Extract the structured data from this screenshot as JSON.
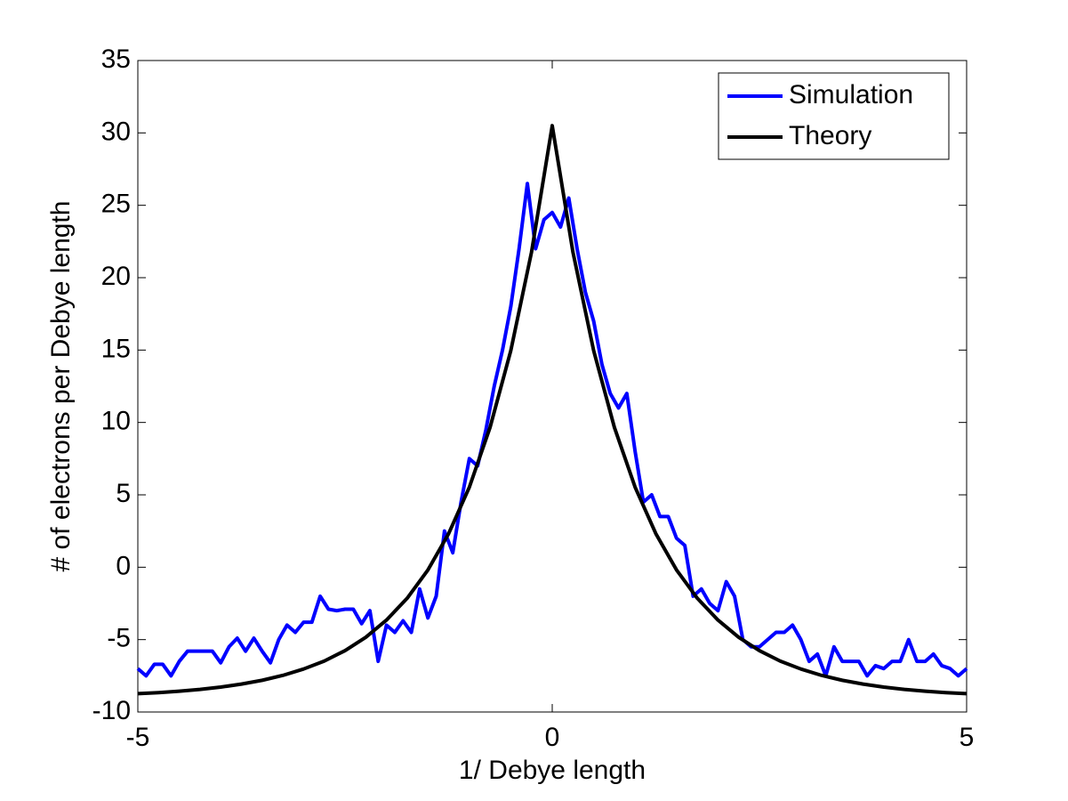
{
  "chart_data": {
    "type": "line",
    "xlabel": "1/ Debye length",
    "ylabel": "# of electrons per Debye length",
    "xlim": [
      -5,
      5
    ],
    "ylim": [
      -10,
      35
    ],
    "xticks": [
      -5,
      0,
      5
    ],
    "yticks": [
      -10,
      -5,
      0,
      5,
      10,
      15,
      20,
      25,
      30,
      35
    ],
    "legend": "upper-right",
    "series": [
      {
        "name": "Simulation",
        "color": "#0000ff",
        "x": [
          -5.0,
          -4.9,
          -4.8,
          -4.7,
          -4.6,
          -4.5,
          -4.4,
          -4.3,
          -4.2,
          -4.1,
          -4.0,
          -3.9,
          -3.8,
          -3.7,
          -3.6,
          -3.5,
          -3.4,
          -3.3,
          -3.2,
          -3.1,
          -3.0,
          -2.9,
          -2.8,
          -2.7,
          -2.6,
          -2.5,
          -2.4,
          -2.3,
          -2.2,
          -2.1,
          -2.0,
          -1.9,
          -1.8,
          -1.7,
          -1.6,
          -1.5,
          -1.4,
          -1.3,
          -1.2,
          -1.1,
          -1.0,
          -0.9,
          -0.8,
          -0.7,
          -0.6,
          -0.5,
          -0.4,
          -0.3,
          -0.2,
          -0.1,
          0,
          0.1,
          0.2,
          0.3,
          0.4,
          0.5,
          0.6,
          0.7,
          0.8,
          0.9,
          1.0,
          1.1,
          1.2,
          1.3,
          1.4,
          1.5,
          1.6,
          1.7,
          1.8,
          1.9,
          2.0,
          2.1,
          2.2,
          2.3,
          2.4,
          2.5,
          2.6,
          2.7,
          2.8,
          2.9,
          3.0,
          3.1,
          3.2,
          3.3,
          3.4,
          3.5,
          3.6,
          3.7,
          3.8,
          3.9,
          4.0,
          4.1,
          4.2,
          4.3,
          4.4,
          4.5,
          4.6,
          4.7,
          4.8,
          4.9,
          5.0
        ],
        "values": [
          -7,
          -7.5,
          -6.7,
          -6.7,
          -7.5,
          -6.5,
          -5.8,
          -5.8,
          -5.8,
          -5.8,
          -6.6,
          -5.5,
          -4.9,
          -5.8,
          -4.9,
          -5.8,
          -6.6,
          -5.0,
          -4.0,
          -4.5,
          -3.8,
          -3.8,
          -2.0,
          -2.9,
          -3.0,
          -2.9,
          -2.9,
          -3.9,
          -3.0,
          -6.5,
          -4.0,
          -4.5,
          -3.7,
          -4.5,
          -1.5,
          -3.5,
          -2.0,
          2.5,
          1.0,
          4.5,
          7.5,
          7.0,
          9.5,
          12.5,
          15.0,
          18.0,
          22.0,
          26.5,
          22.0,
          24.0,
          24.5,
          23.5,
          25.5,
          22.0,
          19.0,
          17.0,
          14.0,
          12.0,
          11.0,
          12.0,
          8.0,
          4.5,
          5.0,
          3.5,
          3.5,
          2.0,
          1.5,
          -2.0,
          -1.5,
          -2.5,
          -3.0,
          -1.0,
          -2.0,
          -5.0,
          -5.5,
          -5.5,
          -5.0,
          -4.5,
          -4.5,
          -4.0,
          -5.0,
          -6.5,
          -6.0,
          -7.5,
          -5.5,
          -6.5,
          -6.5,
          -6.5,
          -7.5,
          -6.8,
          -7.0,
          -6.5,
          -6.5,
          -5.0,
          -6.5,
          -6.5,
          -6.0,
          -6.8,
          -7.0,
          -7.5,
          -7.0
        ]
      },
      {
        "name": "Theory",
        "color": "#000000",
        "x": [
          -5,
          -4.75,
          -4.5,
          -4.25,
          -4,
          -3.75,
          -3.5,
          -3.25,
          -3,
          -2.75,
          -2.5,
          -2.25,
          -2,
          -1.75,
          -1.5,
          -1.25,
          -1,
          -0.75,
          -0.5,
          -0.25,
          0,
          0.25,
          0.5,
          0.75,
          1,
          1.25,
          1.5,
          1.75,
          2,
          2.25,
          2.5,
          2.75,
          3,
          3.25,
          3.5,
          3.75,
          4,
          4.25,
          4.5,
          4.75,
          5
        ],
        "values": [
          -8.73,
          -8.66,
          -8.56,
          -8.44,
          -8.28,
          -8.07,
          -7.81,
          -7.47,
          -7.03,
          -6.48,
          -5.76,
          -4.84,
          -3.65,
          -2.14,
          -0.19,
          2.32,
          5.53,
          9.66,
          14.96,
          21.76,
          30.5,
          21.76,
          14.96,
          9.66,
          5.53,
          2.32,
          -0.19,
          -2.14,
          -3.65,
          -4.84,
          -5.76,
          -6.48,
          -7.03,
          -7.47,
          -7.81,
          -8.07,
          -8.28,
          -8.44,
          -8.56,
          -8.66,
          -8.73
        ]
      }
    ]
  }
}
